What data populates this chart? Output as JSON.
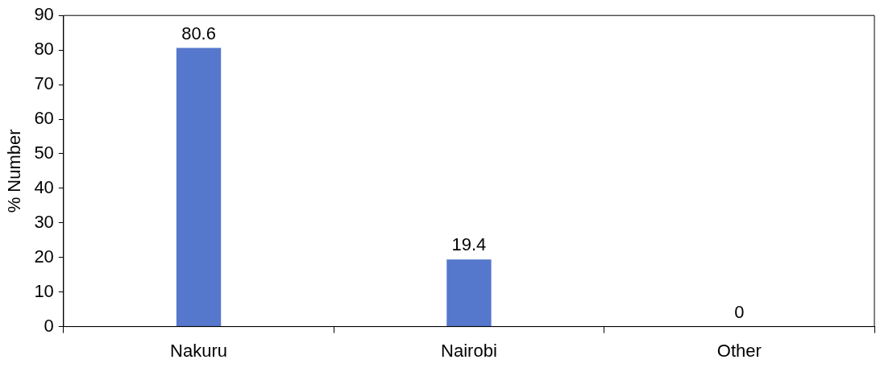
{
  "chart_data": {
    "type": "bar",
    "ylabel": "% Number",
    "categories": [
      "Nakuru",
      "Nairobi",
      "Other"
    ],
    "values": [
      80.6,
      19.4,
      0
    ],
    "color": "#5577cc",
    "ylim": [
      0,
      90
    ],
    "yticks": [
      0,
      10,
      20,
      30,
      40,
      50,
      60,
      70,
      80,
      90
    ],
    "data_labels": true,
    "grid": false,
    "legend": false
  }
}
